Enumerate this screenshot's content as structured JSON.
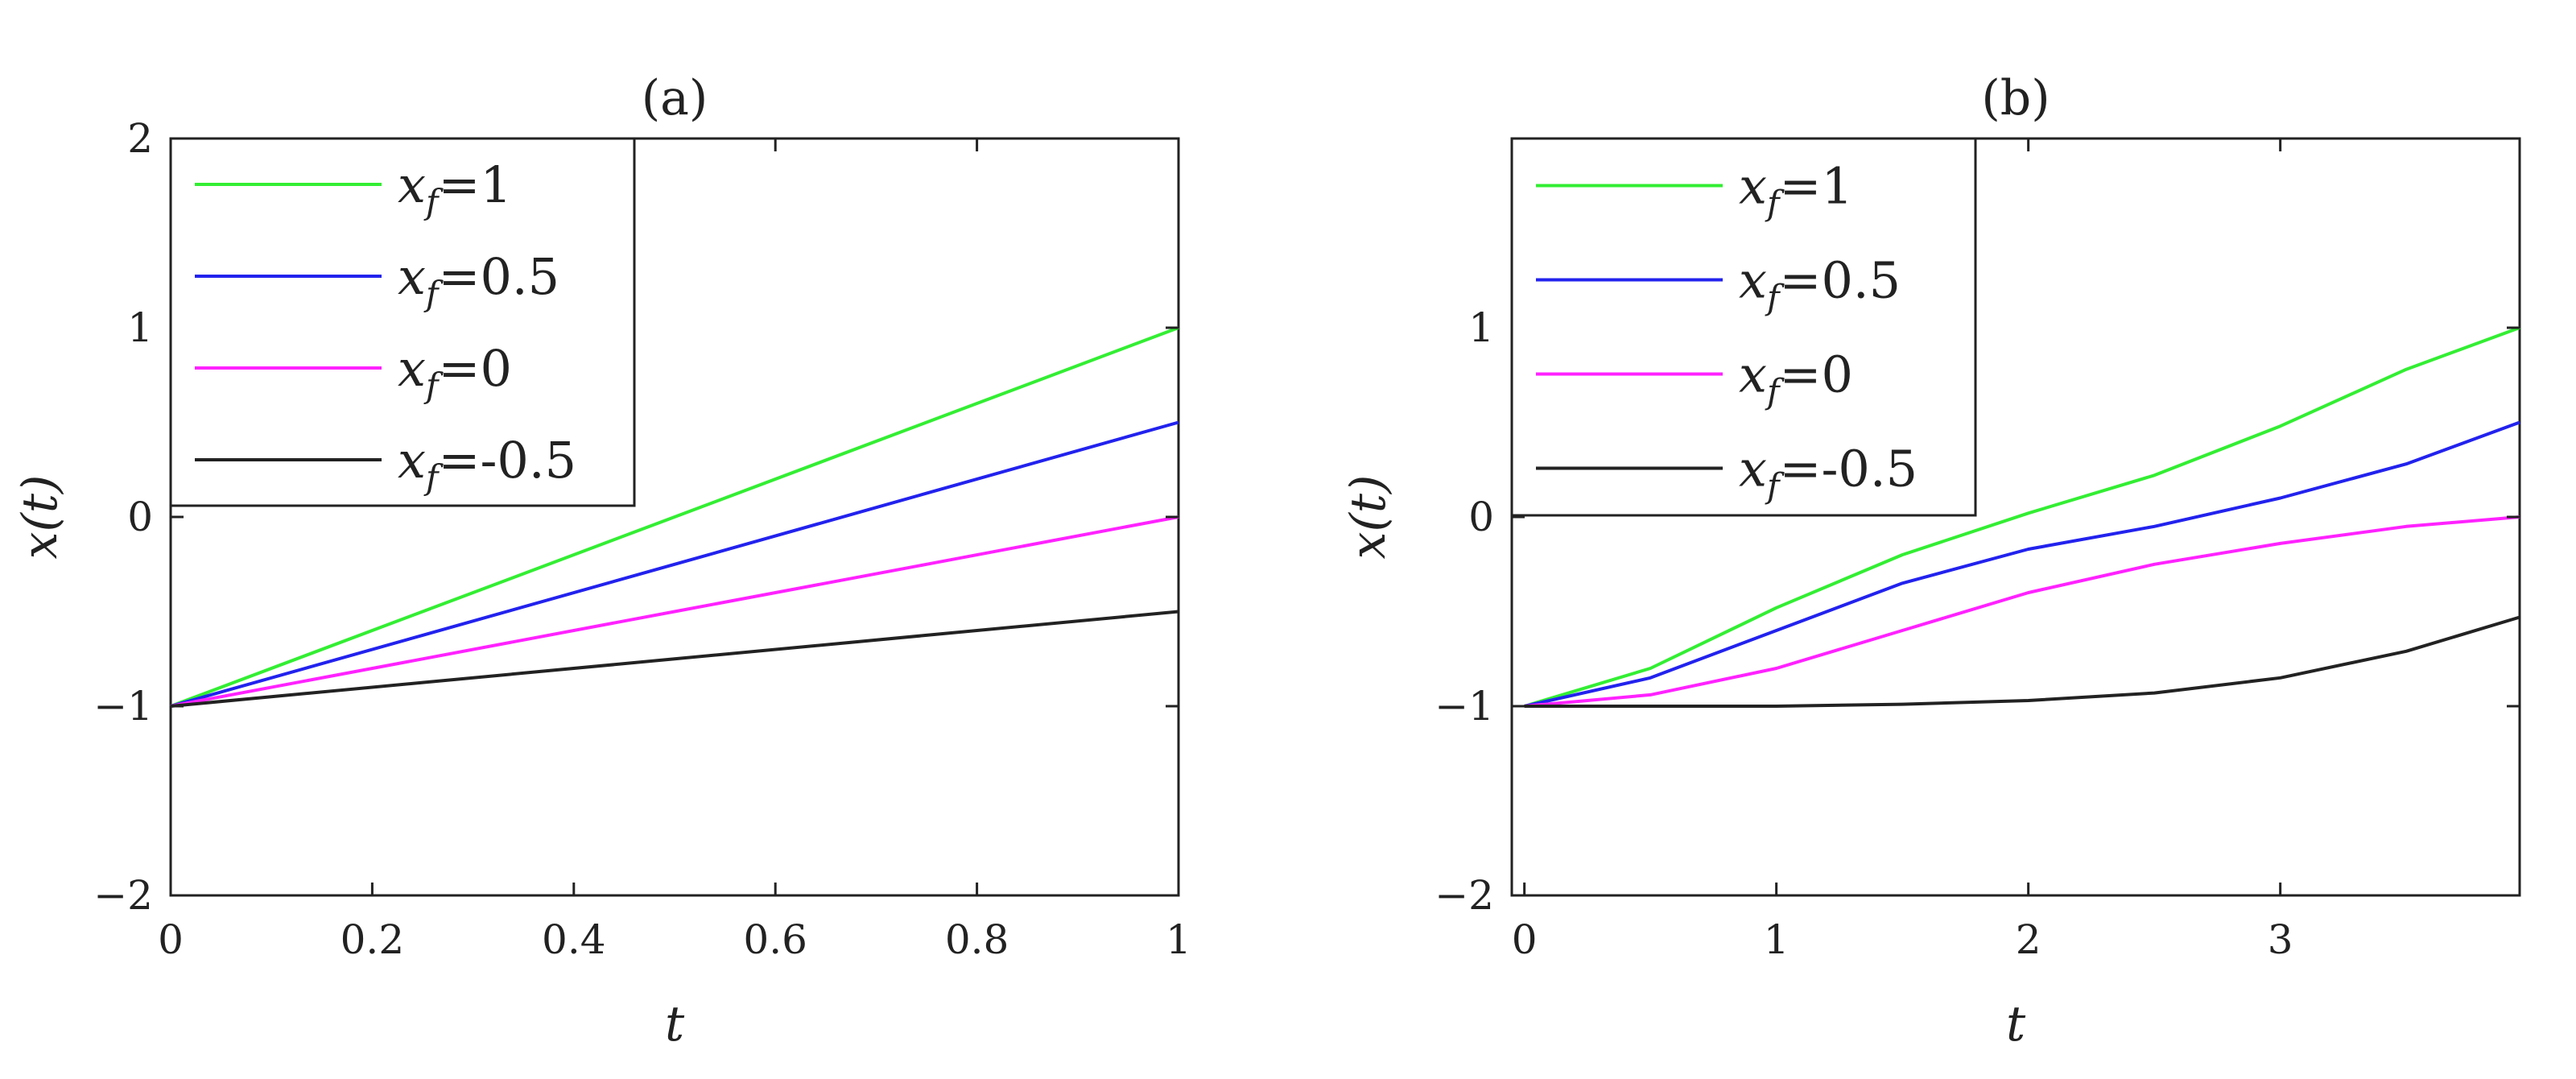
{
  "chart_data": [
    {
      "type": "line",
      "title": "(a)",
      "xlabel": "t",
      "ylabel": "x(t)",
      "xlim": [
        0,
        1
      ],
      "ylim": [
        -2,
        2
      ],
      "xticks": [
        0,
        0.2,
        0.4,
        0.6,
        0.8,
        1
      ],
      "xtick_labels": [
        "0",
        "0.2",
        "0.4",
        "0.6",
        "0.8",
        "1"
      ],
      "yticks": [
        -2,
        -1,
        0,
        1,
        2
      ],
      "ytick_labels": [
        "−2",
        "−1",
        "0",
        "1",
        "2"
      ],
      "grid": false,
      "legend_position": "top-left",
      "series": [
        {
          "name": "x_f=1",
          "legend_value": "=1",
          "color": "#33ee33",
          "x": [
            0,
            0.25,
            0.5,
            0.75,
            1
          ],
          "y": [
            -1,
            -0.5,
            0,
            0.5,
            1
          ]
        },
        {
          "name": "x_f=0.5",
          "legend_value": "=0.5",
          "color": "#2222ee",
          "x": [
            0,
            0.25,
            0.5,
            0.75,
            1
          ],
          "y": [
            -1,
            -0.625,
            -0.25,
            0.125,
            0.5
          ]
        },
        {
          "name": "x_f=0",
          "legend_value": "=0",
          "color": "#ff22ff",
          "x": [
            0,
            0.25,
            0.5,
            0.75,
            1
          ],
          "y": [
            -1,
            -0.75,
            -0.5,
            -0.25,
            0
          ]
        },
        {
          "name": "x_f=-0.5",
          "legend_value": "=-0.5",
          "color": "#222222",
          "x": [
            0,
            0.25,
            0.5,
            0.75,
            1
          ],
          "y": [
            -1,
            -0.875,
            -0.75,
            -0.625,
            -0.5
          ]
        }
      ]
    },
    {
      "type": "line",
      "title": "(b)",
      "xlabel": "t",
      "ylabel": "x(t)",
      "xlim": [
        -0.05,
        3.95
      ],
      "ylim": [
        -2,
        2
      ],
      "xticks": [
        0,
        1,
        2,
        3
      ],
      "xtick_labels": [
        "0",
        "1",
        "2",
        "3"
      ],
      "yticks": [
        -2,
        -1,
        0,
        1
      ],
      "ytick_labels": [
        "−2",
        "−1",
        "0",
        "1"
      ],
      "grid": false,
      "legend_position": "top-left",
      "series": [
        {
          "name": "x_f=1",
          "legend_value": "=1",
          "color": "#33ee33",
          "x": [
            0,
            0.5,
            1,
            1.5,
            2,
            2.5,
            3,
            3.5,
            3.95
          ],
          "y": [
            -1,
            -0.8,
            -0.48,
            -0.2,
            0.02,
            0.22,
            0.48,
            0.78,
            1.0
          ]
        },
        {
          "name": "x_f=0.5",
          "legend_value": "=0.5",
          "color": "#2222ee",
          "x": [
            0,
            0.5,
            1,
            1.5,
            2,
            2.5,
            3,
            3.5,
            3.95
          ],
          "y": [
            -1,
            -0.85,
            -0.6,
            -0.35,
            -0.17,
            -0.05,
            0.1,
            0.28,
            0.5
          ]
        },
        {
          "name": "x_f=0",
          "legend_value": "=0",
          "color": "#ff22ff",
          "x": [
            0,
            0.5,
            1,
            1.5,
            2,
            2.5,
            3,
            3.5,
            3.95
          ],
          "y": [
            -1,
            -0.94,
            -0.8,
            -0.6,
            -0.4,
            -0.25,
            -0.14,
            -0.05,
            0
          ]
        },
        {
          "name": "x_f=-0.5",
          "legend_value": "=-0.5",
          "color": "#222222",
          "x": [
            0,
            0.5,
            1,
            1.5,
            2,
            2.5,
            3,
            3.5,
            3.95
          ],
          "y": [
            -1,
            -1,
            -1,
            -0.99,
            -0.97,
            -0.93,
            -0.85,
            -0.71,
            -0.53
          ]
        }
      ]
    }
  ]
}
